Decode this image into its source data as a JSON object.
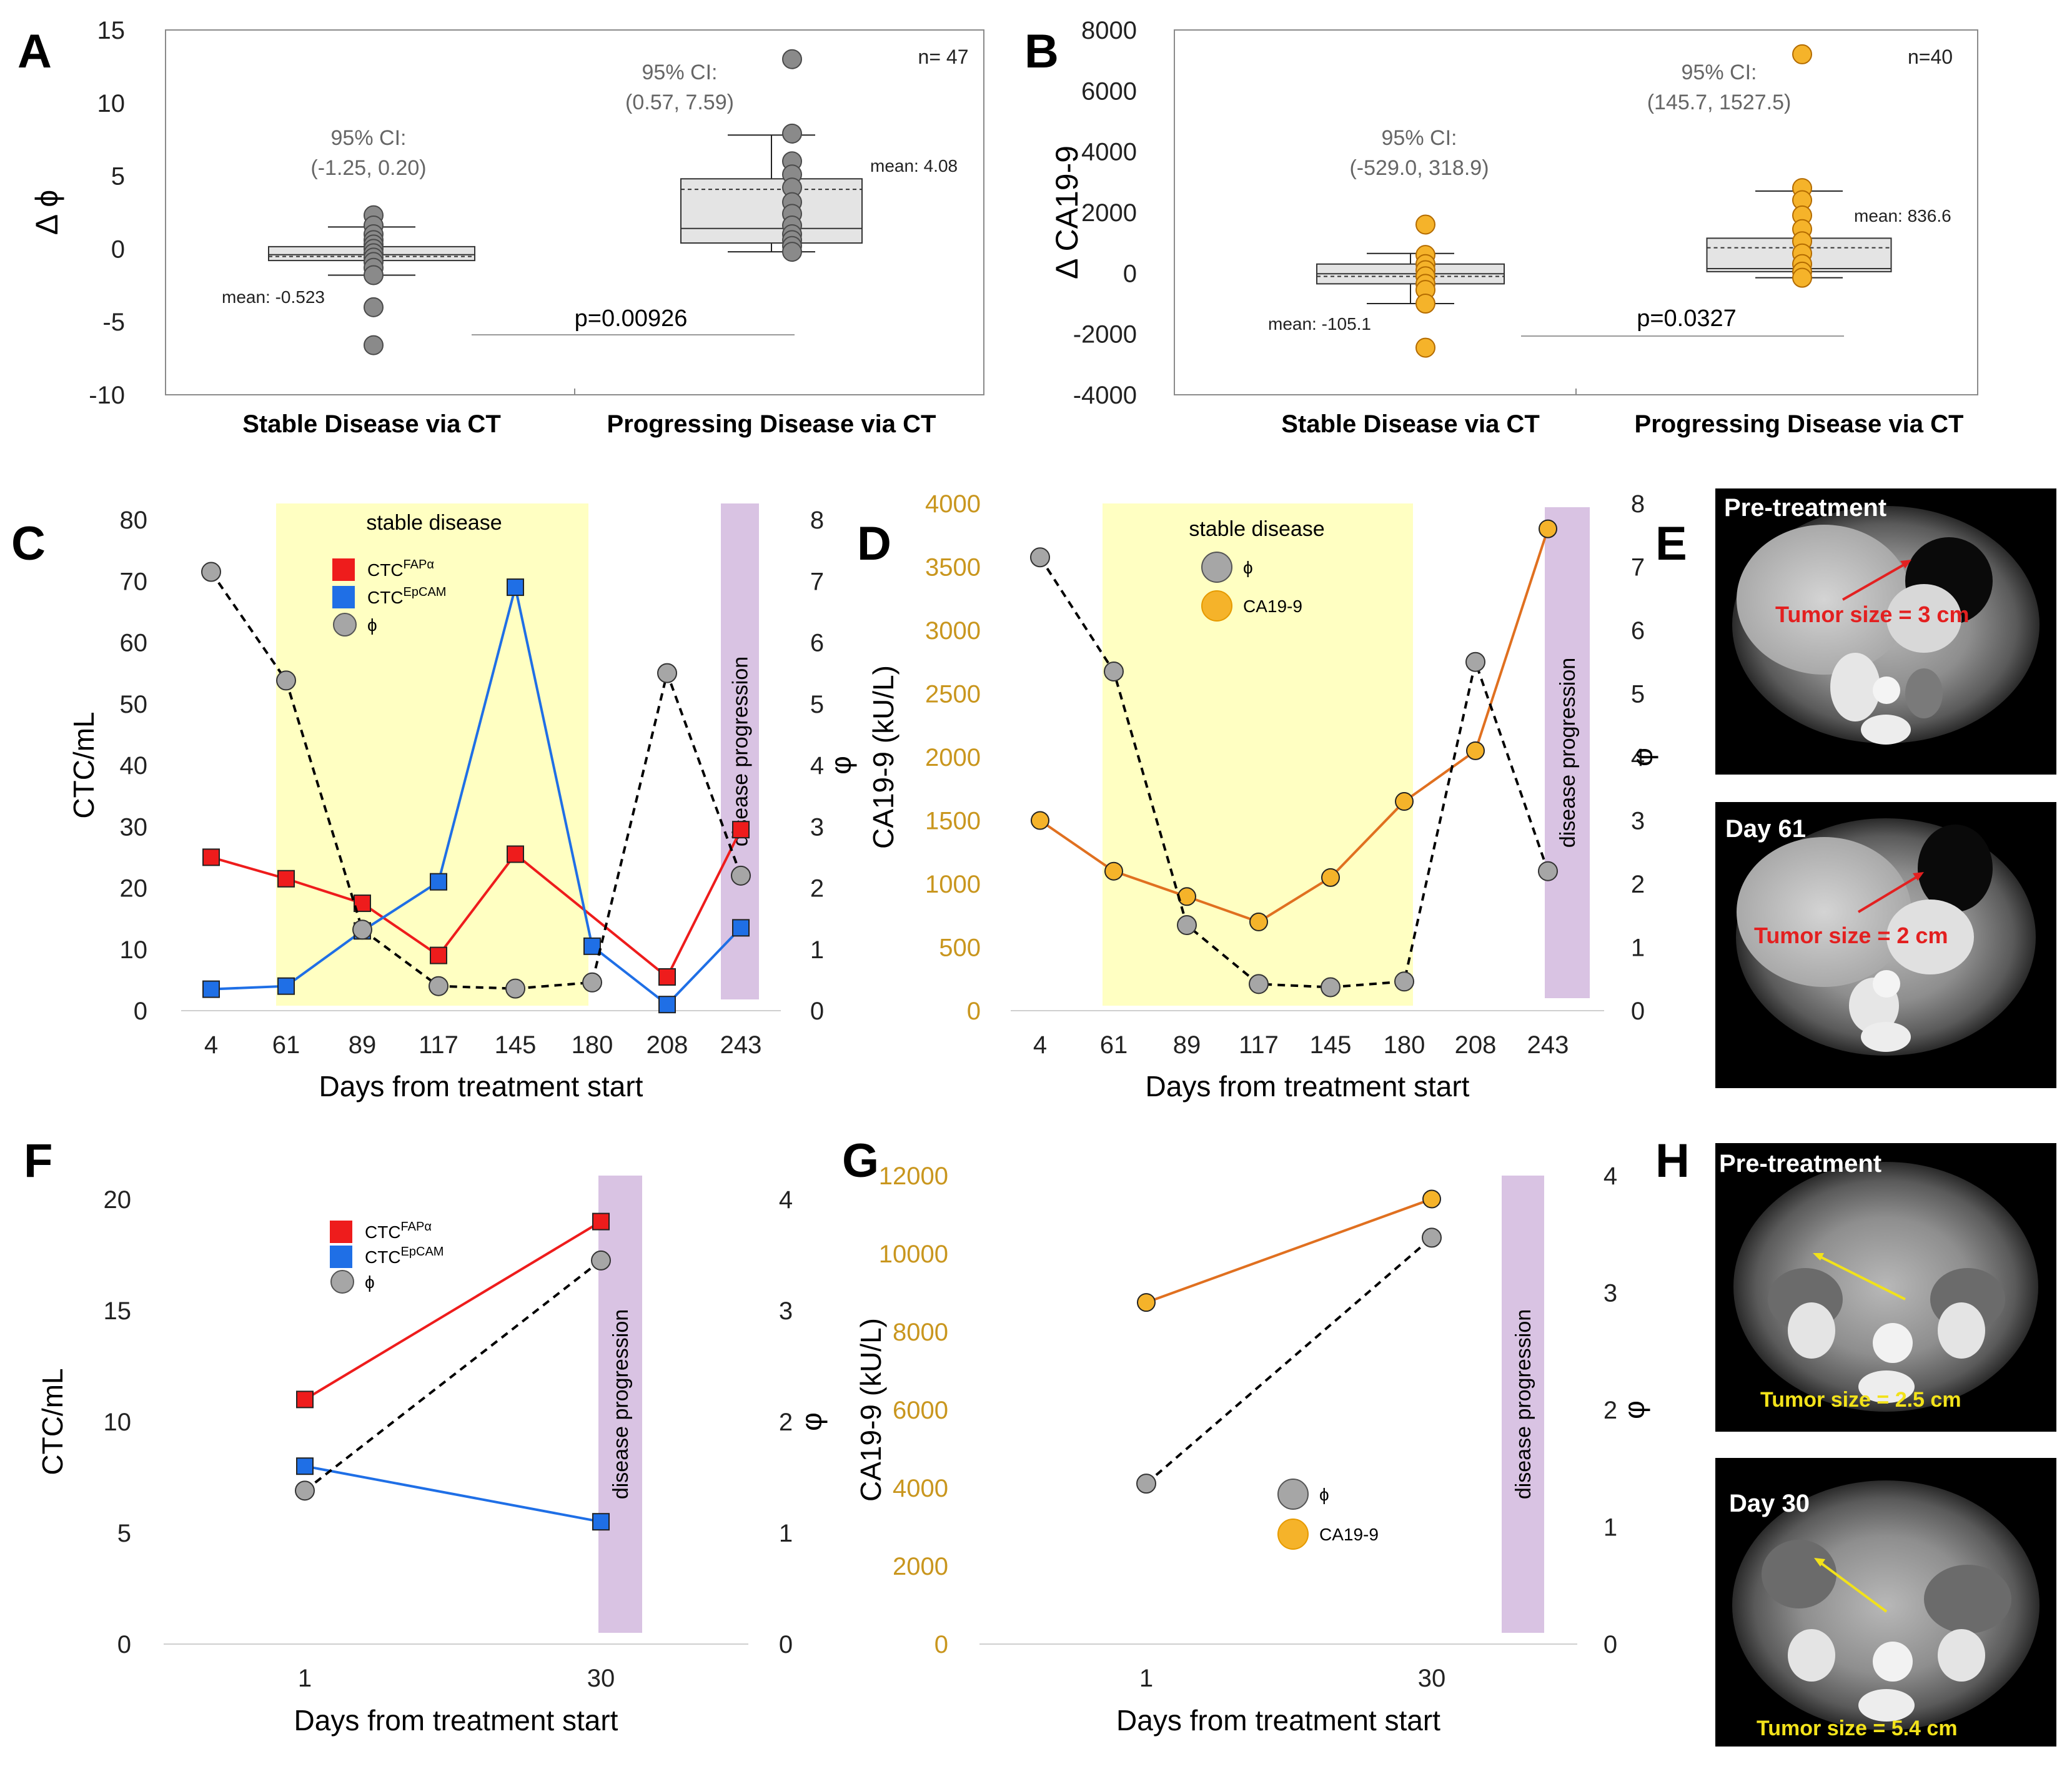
{
  "panels": {
    "A": "A",
    "B": "B",
    "C": "C",
    "D": "D",
    "E": "E",
    "F": "F",
    "G": "G",
    "H": "H"
  },
  "colors": {
    "fap": "#EE1C1C",
    "epcam": "#1F6FE6",
    "phi_fill": "#A6A6A6",
    "ca_fill": "#F5B32A",
    "ca_line": "#E07020",
    "stable_band": "#FFFFC2",
    "progression_band": "#D9C3E3",
    "orange_axis": "#C9961E"
  },
  "chart_data": [
    {
      "id": "A",
      "type": "box",
      "ylabel": "Δ ϕ",
      "ylim": [
        -10,
        15
      ],
      "yticks": [
        15,
        10,
        5,
        0,
        -5,
        -10
      ],
      "categories": [
        "Stable Disease via CT",
        "Progressing Disease via CT"
      ],
      "n_label": "n= 47",
      "groups": [
        {
          "ci_title": "95% CI:",
          "ci": "(-1.25, 0.20)",
          "mean_label": "mean: -0.523",
          "mean": -0.523,
          "q1": -0.8,
          "q3": 0.15,
          "median": -0.4,
          "whisker_low": -1.8,
          "whisker_high": 1.5,
          "points": [
            2.3,
            1.6,
            1.0,
            0.6,
            0.3,
            0.0,
            -0.3,
            -0.6,
            -0.9,
            -1.3,
            -1.8,
            -4.0,
            -6.6
          ]
        },
        {
          "ci_title": "95% CI:",
          "ci": "(0.57, 7.59)",
          "mean_label": "mean: 4.08",
          "mean": 4.08,
          "q1": 0.4,
          "q3": 4.8,
          "median": 1.4,
          "whisker_low": -0.2,
          "whisker_high": 7.8,
          "points": [
            13.0,
            7.9,
            6.0,
            5.1,
            4.2,
            3.2,
            2.4,
            1.6,
            1.0,
            0.6,
            0.2,
            -0.2
          ]
        }
      ],
      "pvalue": "p=0.00926"
    },
    {
      "id": "B",
      "type": "box",
      "ylabel": "Δ CA19-9",
      "ylim": [
        -4000,
        8000
      ],
      "yticks": [
        8000,
        6000,
        4000,
        2000,
        0,
        -2000,
        -4000
      ],
      "categories": [
        "Stable Disease via CT",
        "Progressing Disease via CT"
      ],
      "n_label": "n=40",
      "groups": [
        {
          "ci_title": "95% CI:",
          "ci": "(-529.0, 318.9)",
          "mean_label": "mean: -105.1",
          "mean": -105.1,
          "q1": -350,
          "q3": 300,
          "median": -20,
          "whisker_low": -1000,
          "whisker_high": 650,
          "points": [
            1600,
            600,
            300,
            100,
            -100,
            -350,
            -550,
            -1000,
            -2450
          ]
        },
        {
          "ci_title": "95% CI:",
          "ci": "(145.7, 1527.5)",
          "mean_label": "mean: 836.6",
          "mean": 836.6,
          "q1": 50,
          "q3": 1150,
          "median": 150,
          "whisker_low": -150,
          "whisker_high": 2700,
          "points": [
            7200,
            2800,
            2400,
            1900,
            1450,
            1050,
            650,
            300,
            50,
            -150
          ]
        }
      ],
      "pvalue": "p=0.0327"
    },
    {
      "id": "C",
      "type": "line",
      "xlabel": "Days from treatment start",
      "ylabel": "CTC/mL",
      "y2label": "φ",
      "x": [
        "4",
        "61",
        "89",
        "117",
        "145",
        "180",
        "208",
        "243"
      ],
      "ylim": [
        0,
        80
      ],
      "yticks": [
        0,
        10,
        20,
        30,
        40,
        50,
        60,
        70,
        80
      ],
      "y2lim": [
        0,
        8
      ],
      "y2ticks": [
        0,
        1,
        2,
        3,
        4,
        5,
        6,
        7,
        8
      ],
      "stable_label": "stable disease",
      "progression_label": "disease progression",
      "legend": [
        {
          "name": "CTC",
          "sup": "FAPα",
          "kind": "red-square"
        },
        {
          "name": "CTC",
          "sup": "EpCAM",
          "kind": "blue-square"
        },
        {
          "name": "ϕ",
          "sup": "",
          "kind": "gray-circle"
        }
      ],
      "series": [
        {
          "name": "CTC FAPα",
          "axis": "left",
          "values": [
            25,
            21.5,
            17.5,
            9,
            25.5,
            null,
            5.5,
            29.5
          ]
        },
        {
          "name": "CTC EpCAM",
          "axis": "left",
          "values": [
            3.5,
            4,
            13,
            21,
            69,
            10.5,
            1,
            13.5
          ]
        },
        {
          "name": "ϕ",
          "axis": "right",
          "values": [
            7.15,
            5.38,
            1.32,
            0.4,
            0.36,
            0.46,
            5.5,
            2.2
          ]
        }
      ]
    },
    {
      "id": "D",
      "type": "line",
      "xlabel": "Days from treatment start",
      "ylabel": "CA19-9 (kU/L)",
      "y2label": "φ",
      "x": [
        "4",
        "61",
        "89",
        "117",
        "145",
        "180",
        "208",
        "243"
      ],
      "ylim": [
        0,
        4000
      ],
      "yticks": [
        0,
        500,
        1000,
        1500,
        2000,
        2500,
        3000,
        3500,
        4000
      ],
      "y2lim": [
        0,
        8
      ],
      "y2ticks": [
        0,
        1,
        2,
        3,
        4,
        5,
        6,
        7,
        8
      ],
      "stable_label": "stable disease",
      "progression_label": "disease progression",
      "legend": [
        {
          "name": "ϕ",
          "kind": "gray-circle"
        },
        {
          "name": "CA19-9",
          "kind": "orange-circle"
        }
      ],
      "series": [
        {
          "name": "CA19-9",
          "axis": "left",
          "values": [
            1500,
            1100,
            900,
            700,
            1050,
            1650,
            2050,
            3800
          ]
        },
        {
          "name": "ϕ",
          "axis": "right",
          "values": [
            7.15,
            5.35,
            1.35,
            0.42,
            0.37,
            0.46,
            5.5,
            2.2
          ]
        }
      ]
    },
    {
      "id": "F",
      "type": "line",
      "xlabel": "Days from treatment start",
      "ylabel": "CTC/mL",
      "y2label": "φ",
      "x": [
        "1",
        "30"
      ],
      "ylim": [
        0,
        20
      ],
      "yticks": [
        0,
        5,
        10,
        15,
        20
      ],
      "y2lim": [
        0,
        4
      ],
      "y2ticks": [
        0,
        1,
        2,
        3,
        4
      ],
      "progression_label": "disease progression",
      "legend": [
        {
          "name": "CTC",
          "sup": "FAPα",
          "kind": "red-square"
        },
        {
          "name": "CTC",
          "sup": "EpCAM",
          "kind": "blue-square"
        },
        {
          "name": "ϕ",
          "sup": "",
          "kind": "gray-circle"
        }
      ],
      "series": [
        {
          "name": "CTC FAPα",
          "axis": "left",
          "values": [
            11,
            19
          ]
        },
        {
          "name": "CTC EpCAM",
          "axis": "left",
          "values": [
            8,
            5.5
          ]
        },
        {
          "name": "ϕ",
          "axis": "right",
          "values": [
            1.38,
            3.45
          ]
        }
      ]
    },
    {
      "id": "G",
      "type": "line",
      "xlabel": "Days from treatment start",
      "ylabel": "CA19-9 (kU/L)",
      "y2label": "φ",
      "x": [
        "1",
        "30"
      ],
      "ylim": [
        0,
        12000
      ],
      "yticks": [
        0,
        2000,
        4000,
        6000,
        8000,
        10000,
        12000
      ],
      "y2lim": [
        0,
        4
      ],
      "y2ticks": [
        0,
        1,
        2,
        3,
        4
      ],
      "progression_label": "disease progression",
      "legend": [
        {
          "name": "ϕ",
          "kind": "gray-circle"
        },
        {
          "name": "CA19-9",
          "kind": "orange-circle"
        }
      ],
      "series": [
        {
          "name": "CA19-9",
          "axis": "left",
          "values": [
            8750,
            11400
          ]
        },
        {
          "name": "ϕ",
          "axis": "right",
          "values": [
            1.37,
            3.47
          ]
        }
      ]
    }
  ],
  "scans": {
    "E": {
      "top_label": "Pre-treatment",
      "top_tumor": "Tumor size = 3 cm",
      "bottom_label": "Day 61",
      "bottom_tumor": "Tumor size = 2 cm",
      "arrow_color": "#E32020"
    },
    "H": {
      "top_label": "Pre-treatment",
      "top_tumor": "Tumor size = 2.5 cm",
      "bottom_label": "Day 30",
      "bottom_tumor": "Tumor size = 5.4 cm",
      "arrow_color": "#F2E21A"
    }
  }
}
